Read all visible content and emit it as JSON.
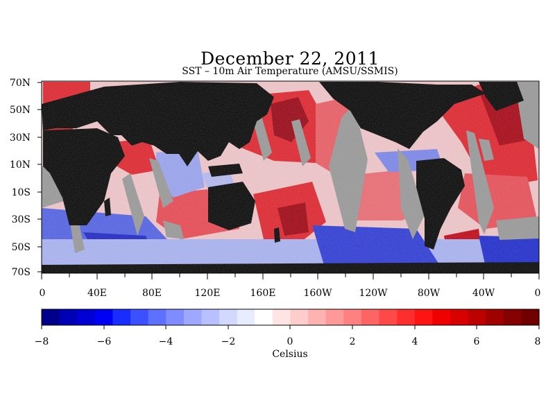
{
  "title": "December 22, 2011",
  "subtitle": "SST – 10m Air Temperature (AMSU/SSMIS)",
  "map": {
    "lat_labels": [
      "70N",
      "50N",
      "30N",
      "10N",
      "10S",
      "30S",
      "50S",
      "70S"
    ],
    "lon_labels": [
      "0",
      "40E",
      "80E",
      "120E",
      "160E",
      "160W",
      "120W",
      "80W",
      "40W",
      "0"
    ],
    "colors": {
      "land": "#000000",
      "no_data": "#999999",
      "warm": "#e3202a",
      "cold": "#1e2ad6"
    }
  },
  "colorbar": {
    "tick_labels": [
      "−8",
      "−6",
      "−4",
      "−2",
      "0",
      "2",
      "4",
      "6",
      "8"
    ],
    "label": "Celsius",
    "colors": [
      "#00008b",
      "#0000b4",
      "#0000d6",
      "#0000f5",
      "#1a2dff",
      "#3c50ff",
      "#5e70ff",
      "#7e8cff",
      "#9ea8ff",
      "#b8c0ff",
      "#d2d8ff",
      "#e8ecff",
      "#ffffff",
      "#ffe4e4",
      "#ffcccc",
      "#ffb2b2",
      "#ff9898",
      "#ff8080",
      "#ff6464",
      "#ff4848",
      "#ff2e2e",
      "#ff1414",
      "#f00000",
      "#d80000",
      "#bd0000",
      "#a00000",
      "#850000",
      "#700000"
    ]
  }
}
